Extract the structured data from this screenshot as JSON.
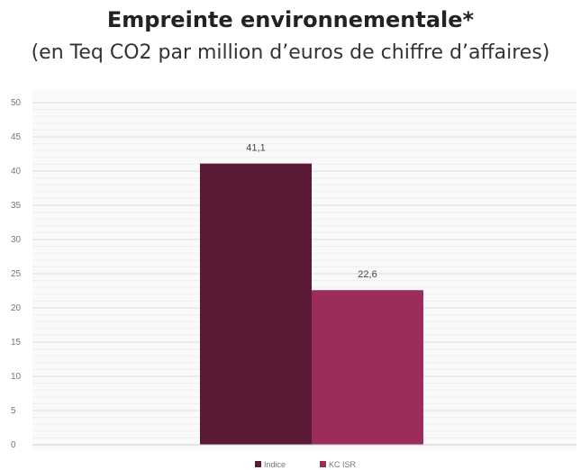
{
  "chart_data": {
    "type": "bar",
    "title": "Empreinte environnementale*",
    "subtitle": "(en Teq CO2 par million d’euros de chiffre d’affaires)",
    "categories": [
      ""
    ],
    "series": [
      {
        "name": "Indice",
        "values": [
          41.1
        ],
        "label": "41,1",
        "color": "#5a1a36"
      },
      {
        "name": "KC ISR",
        "values": [
          22.6
        ],
        "label": "22,6",
        "color": "#9b2c5c"
      }
    ],
    "ylim": [
      0,
      50
    ],
    "yticks": [
      0,
      5,
      10,
      15,
      20,
      25,
      30,
      35,
      40,
      45,
      50
    ],
    "xlabel": "",
    "ylabel": "",
    "grid": true,
    "legend": "bottom"
  }
}
